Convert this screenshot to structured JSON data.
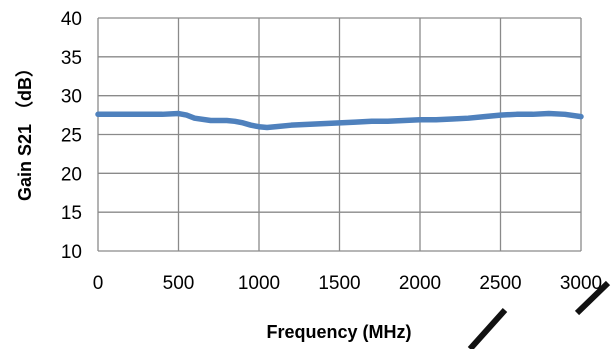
{
  "chart_data": {
    "type": "line",
    "title": "",
    "xlabel": "Frequency (MHz)",
    "ylabel": "Gain S21 （dB）",
    "xlim": [
      0,
      3000
    ],
    "ylim": [
      10,
      40
    ],
    "x_ticks": [
      0,
      500,
      1000,
      1500,
      2000,
      2500,
      3000
    ],
    "y_ticks": [
      10,
      15,
      20,
      25,
      30,
      35,
      40
    ],
    "x_tick_labels": [
      "0",
      "500",
      "1000",
      "1500",
      "2000",
      "2500",
      "3000"
    ],
    "y_tick_labels": [
      "10",
      "15",
      "20",
      "25",
      "30",
      "35",
      "40"
    ],
    "grid": true,
    "legend": "none",
    "series": [
      {
        "color": "#4f81bd",
        "x": [
          0,
          100,
          200,
          300,
          400,
          500,
          550,
          600,
          700,
          800,
          850,
          900,
          950,
          1000,
          1050,
          1100,
          1200,
          1300,
          1400,
          1500,
          1600,
          1700,
          1800,
          1900,
          2000,
          2100,
          2200,
          2300,
          2400,
          2500,
          2600,
          2700,
          2800,
          2900,
          3000
        ],
        "y": [
          27.6,
          27.6,
          27.6,
          27.6,
          27.6,
          27.7,
          27.5,
          27.1,
          26.8,
          26.8,
          26.7,
          26.5,
          26.2,
          26.0,
          25.9,
          26.0,
          26.2,
          26.3,
          26.4,
          26.5,
          26.6,
          26.7,
          26.7,
          26.8,
          26.9,
          26.9,
          27.0,
          27.1,
          27.3,
          27.5,
          27.6,
          27.6,
          27.7,
          27.6,
          27.3
        ]
      }
    ]
  },
  "decor": {
    "watermark_color": "#111111"
  }
}
